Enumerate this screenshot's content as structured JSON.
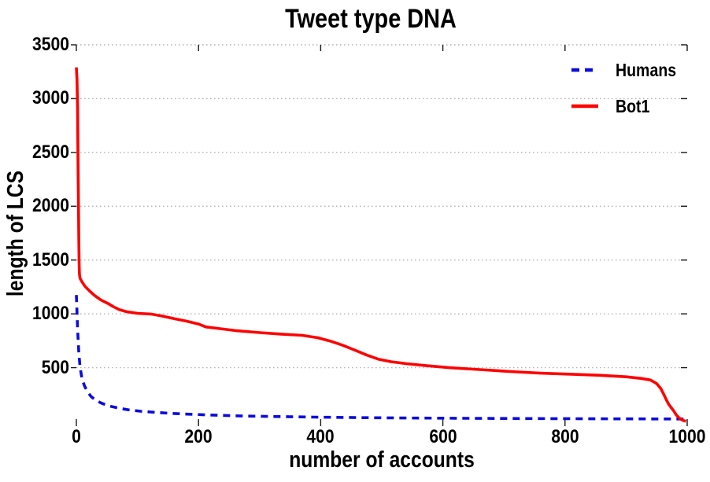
{
  "chart_data": {
    "type": "line",
    "title": "Tweet type DNA",
    "xlabel": "number of accounts",
    "ylabel": "length of LCS",
    "xlim": [
      0,
      1000
    ],
    "ylim": [
      0,
      3500
    ],
    "xticks": [
      0,
      200,
      400,
      600,
      800,
      1000
    ],
    "yticks": [
      500,
      1000,
      1500,
      2000,
      2500,
      3000,
      3500
    ],
    "grid": "horizontal dotted gray lines at every 500; no vertical gridlines; no axis spines",
    "grid_color": "#b4b4b4",
    "tick_color": "#1a1a1a",
    "legend_position": "upper right, no border, transparent",
    "series": [
      {
        "name": "Humans",
        "color": "#0b0be0",
        "style": "dashed",
        "points": [
          [
            0,
            1175
          ],
          [
            2,
            860
          ],
          [
            4,
            640
          ],
          [
            6,
            505
          ],
          [
            9,
            405
          ],
          [
            13,
            335
          ],
          [
            18,
            278
          ],
          [
            24,
            232
          ],
          [
            32,
            196
          ],
          [
            42,
            168
          ],
          [
            54,
            143
          ],
          [
            68,
            125
          ],
          [
            85,
            108
          ],
          [
            105,
            95
          ],
          [
            130,
            84
          ],
          [
            160,
            74
          ],
          [
            195,
            65
          ],
          [
            235,
            57
          ],
          [
            280,
            50
          ],
          [
            330,
            45
          ],
          [
            390,
            40
          ],
          [
            460,
            36
          ],
          [
            540,
            32
          ],
          [
            620,
            30
          ],
          [
            700,
            28
          ],
          [
            780,
            26
          ],
          [
            860,
            25
          ],
          [
            1000,
            23
          ]
        ]
      },
      {
        "name": "Bot1",
        "color": "#ff0000",
        "style": "solid",
        "points": [
          [
            0,
            3290
          ],
          [
            1,
            3180
          ],
          [
            2,
            2900
          ],
          [
            2.5,
            2600
          ],
          [
            3,
            2300
          ],
          [
            3.5,
            2000
          ],
          [
            4,
            1700
          ],
          [
            4.5,
            1480
          ],
          [
            5,
            1370
          ],
          [
            6,
            1330
          ],
          [
            10,
            1290
          ],
          [
            15,
            1250
          ],
          [
            22,
            1210
          ],
          [
            30,
            1170
          ],
          [
            40,
            1130
          ],
          [
            52,
            1095
          ],
          [
            60,
            1068
          ],
          [
            70,
            1040
          ],
          [
            82,
            1020
          ],
          [
            100,
            1005
          ],
          [
            122,
            998
          ],
          [
            140,
            980
          ],
          [
            160,
            955
          ],
          [
            180,
            932
          ],
          [
            200,
            905
          ],
          [
            212,
            878
          ],
          [
            230,
            866
          ],
          [
            260,
            845
          ],
          [
            300,
            826
          ],
          [
            335,
            812
          ],
          [
            370,
            800
          ],
          [
            395,
            778
          ],
          [
            415,
            748
          ],
          [
            435,
            710
          ],
          [
            455,
            665
          ],
          [
            475,
            618
          ],
          [
            495,
            578
          ],
          [
            515,
            555
          ],
          [
            540,
            537
          ],
          [
            570,
            520
          ],
          [
            610,
            500
          ],
          [
            660,
            482
          ],
          [
            710,
            464
          ],
          [
            760,
            449
          ],
          [
            810,
            439
          ],
          [
            860,
            428
          ],
          [
            900,
            415
          ],
          [
            925,
            400
          ],
          [
            940,
            385
          ],
          [
            950,
            352
          ],
          [
            957,
            305
          ],
          [
            962,
            248
          ],
          [
            966,
            200
          ],
          [
            970,
            158
          ],
          [
            974,
            128
          ],
          [
            978,
            98
          ],
          [
            982,
            62
          ],
          [
            986,
            38
          ],
          [
            990,
            20
          ],
          [
            994,
            8
          ],
          [
            998,
            2
          ]
        ]
      }
    ]
  }
}
